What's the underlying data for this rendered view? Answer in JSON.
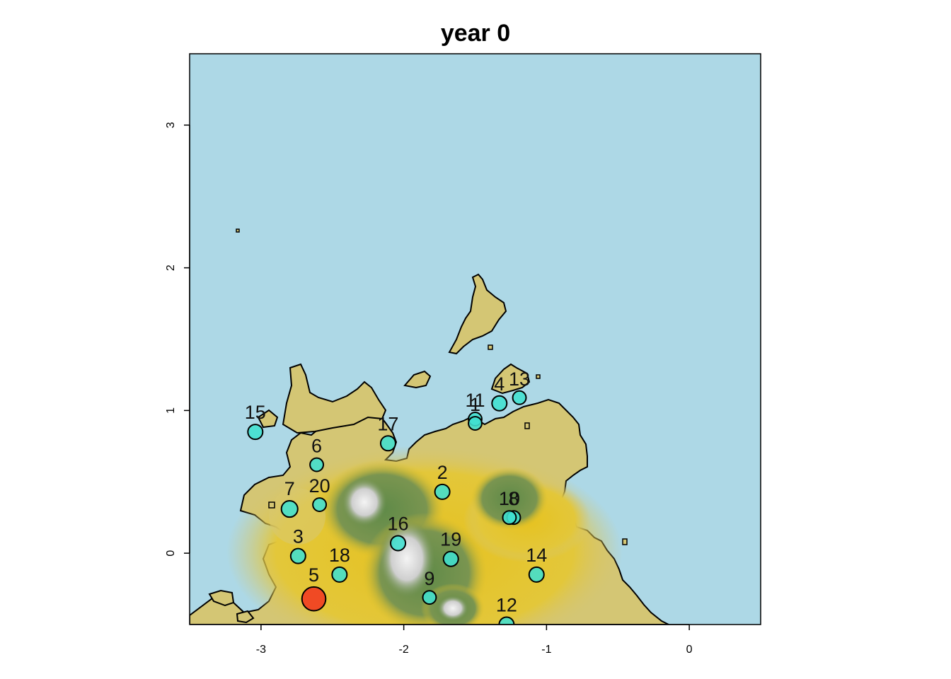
{
  "title": "year 0",
  "colors": {
    "sea": "#add8e6",
    "lowland": "#d4c674",
    "upland": "#e3c22a",
    "forest": "#6f8f4e",
    "peak": "#e6e6e6",
    "site_fill": "#40e0d0",
    "site_highlight": "#f04a24",
    "outline": "#000000"
  },
  "chart_data": {
    "type": "scatter",
    "title": "year 0",
    "xlabel": "",
    "ylabel": "",
    "xlim": [
      -3.5,
      0.5
    ],
    "ylim": [
      -0.5,
      3.5
    ],
    "xticks": [
      -3,
      -2,
      -1,
      0
    ],
    "yticks": [
      0,
      1,
      2,
      3
    ],
    "xtick_labels": [
      "-3",
      "-2",
      "-1",
      "0"
    ],
    "ytick_labels": [
      "0",
      "1",
      "2",
      "3"
    ],
    "sites": [
      {
        "label": "2",
        "x": -1.73,
        "y": 0.43,
        "size": 1.0
      },
      {
        "label": "3",
        "x": -2.74,
        "y": -0.02,
        "size": 1.0
      },
      {
        "label": "4",
        "x": -1.33,
        "y": 1.05,
        "size": 1.0
      },
      {
        "label": "5",
        "x": -2.63,
        "y": -0.32,
        "size": 1.6,
        "highlight": true
      },
      {
        "label": "6",
        "x": -2.61,
        "y": 0.62,
        "size": 0.9
      },
      {
        "label": "7",
        "x": -2.8,
        "y": 0.31,
        "size": 1.1
      },
      {
        "label": "8",
        "x": -1.23,
        "y": 0.25,
        "size": 0.9
      },
      {
        "label": "9",
        "x": -1.82,
        "y": -0.31,
        "size": 0.9
      },
      {
        "label": "10",
        "x": -1.26,
        "y": 0.25,
        "size": 0.9
      },
      {
        "label": "11",
        "x": -1.5,
        "y": 0.94,
        "size": 0.9
      },
      {
        "label": "12",
        "x": -1.28,
        "y": -0.5,
        "size": 1.0
      },
      {
        "label": "13",
        "x": -1.19,
        "y": 1.09,
        "size": 0.9
      },
      {
        "label": "14",
        "x": -1.07,
        "y": -0.15,
        "size": 1.0
      },
      {
        "label": "15",
        "x": -3.04,
        "y": 0.85,
        "size": 1.0
      },
      {
        "label": "16",
        "x": -2.04,
        "y": 0.07,
        "size": 1.0
      },
      {
        "label": "17",
        "x": -2.11,
        "y": 0.77,
        "size": 1.0
      },
      {
        "label": "18",
        "x": -2.45,
        "y": -0.15,
        "size": 1.0
      },
      {
        "label": "19",
        "x": -1.67,
        "y": -0.04,
        "size": 1.0
      },
      {
        "label": "20",
        "x": -2.59,
        "y": 0.34,
        "size": 0.9
      },
      {
        "label": "1",
        "x": -1.5,
        "y": 0.91,
        "size": 0.9
      }
    ]
  }
}
